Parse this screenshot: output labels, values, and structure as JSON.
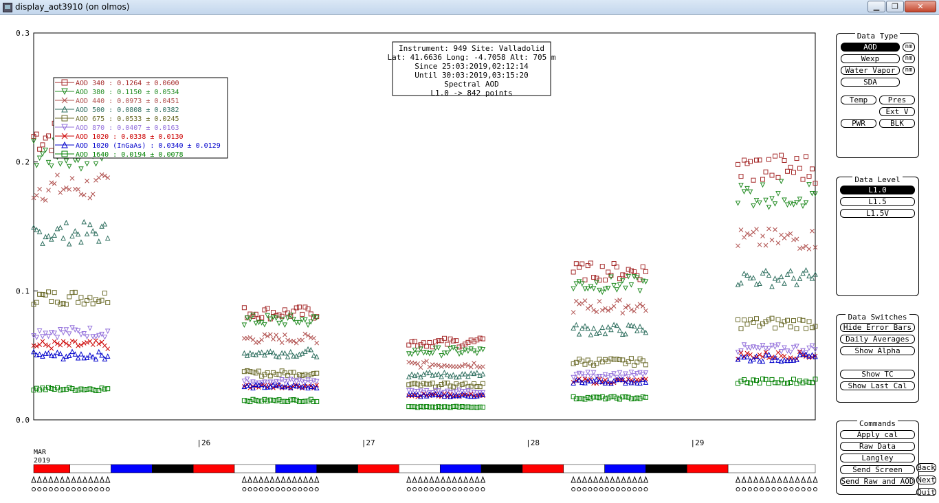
{
  "window": {
    "title": "display_aot3910 (on olmos)"
  },
  "info_box": [
    "Instrument: 949 Site: Valladolid",
    "Lat: 41.6636 Long: -4.7058 Alt: 705 m",
    "Since 25:03:2019,02:12:14",
    "Until 30:03:2019,03:15:20",
    "Spectral AOD",
    "L1.0 -> 842 points"
  ],
  "legend": [
    {
      "name": "AOD 340",
      "stat": ": 0.1264 ± 0.0600",
      "color": "#a52a2a",
      "marker": "square"
    },
    {
      "name": "AOD 380",
      "stat": ": 0.1150 ± 0.0534",
      "color": "#228b22",
      "marker": "tri-down"
    },
    {
      "name": "AOD 440",
      "stat": ": 0.0973 ± 0.0451",
      "color": "#b0504e",
      "marker": "x"
    },
    {
      "name": "AOD 500",
      "stat": ": 0.0808 ± 0.0382",
      "color": "#2f6f5f",
      "marker": "tri-up"
    },
    {
      "name": "AOD 675",
      "stat": ": 0.0533 ± 0.0245",
      "color": "#6b6b2a",
      "marker": "square"
    },
    {
      "name": "AOD 870",
      "stat": ": 0.0407 ± 0.0163",
      "color": "#9370db",
      "marker": "tri-down"
    },
    {
      "name": "AOD 1020",
      "stat": " : 0.0338 ± 0.0130",
      "color": "#cc0000",
      "marker": "x"
    },
    {
      "name": "AOD 1020 (InGaAs)",
      "stat": " : 0.0340 ± 0.0129",
      "color": "#0000cc",
      "marker": "tri-up"
    },
    {
      "name": "AOD 1640",
      "stat": " : 0.0194 ± 0.0078",
      "color": "#008000",
      "marker": "square"
    }
  ],
  "chart_data": {
    "type": "scatter",
    "title": "",
    "ylim": [
      0,
      0.3
    ],
    "y_ticks": [
      "0.0",
      "0.1",
      "0.2",
      "0.3"
    ],
    "x_ticks": [
      "|26",
      "|27",
      "|28",
      "|29"
    ],
    "x_month_label": "MAR",
    "x_year_label": "2019",
    "x_range_days": [
      25.0,
      29.75
    ],
    "segments": [
      {
        "day_start": 25.0,
        "day_end": 25.45,
        "values": {
          "AOD 340": 0.22,
          "AOD 380": 0.205,
          "AOD 440": 0.18,
          "AOD 500": 0.145,
          "AOD 675": 0.095,
          "AOD 870": 0.068,
          "AOD 1020": 0.058,
          "AOD 1020 (InGaAs)": 0.05,
          "AOD 1640": 0.024
        }
      },
      {
        "day_start": 26.28,
        "day_end": 26.72,
        "values": {
          "AOD 340": 0.083,
          "AOD 380": 0.077,
          "AOD 440": 0.063,
          "AOD 500": 0.052,
          "AOD 675": 0.036,
          "AOD 870": 0.03,
          "AOD 1020": 0.026,
          "AOD 1020 (InGaAs)": 0.026,
          "AOD 1640": 0.015
        }
      },
      {
        "day_start": 27.28,
        "day_end": 27.73,
        "values": {
          "AOD 340": 0.06,
          "AOD 380": 0.053,
          "AOD 440": 0.043,
          "AOD 500": 0.035,
          "AOD 675": 0.027,
          "AOD 870": 0.022,
          "AOD 1020": 0.019,
          "AOD 1020 (InGaAs)": 0.019,
          "AOD 1640": 0.01
        }
      },
      {
        "day_start": 28.28,
        "day_end": 28.72,
        "values": {
          "AOD 340": 0.115,
          "AOD 380": 0.105,
          "AOD 440": 0.088,
          "AOD 500": 0.07,
          "AOD 675": 0.045,
          "AOD 870": 0.035,
          "AOD 1020": 0.03,
          "AOD 1020 (InGaAs)": 0.03,
          "AOD 1640": 0.017
        }
      },
      {
        "day_start": 29.28,
        "day_end": 29.75,
        "values": {
          "AOD 340": 0.195,
          "AOD 380": 0.175,
          "AOD 440": 0.14,
          "AOD 500": 0.11,
          "AOD 675": 0.075,
          "AOD 870": 0.055,
          "AOD 1020": 0.05,
          "AOD 1020 (InGaAs)": 0.048,
          "AOD 1640": 0.03
        }
      }
    ],
    "time_bar": [
      {
        "day_start": 25.0,
        "day_end": 25.22,
        "color": "#ff0000"
      },
      {
        "day_start": 25.22,
        "day_end": 25.47,
        "color": "#ffffff"
      },
      {
        "day_start": 25.47,
        "day_end": 25.72,
        "color": "#0000ff"
      },
      {
        "day_start": 25.72,
        "day_end": 25.97,
        "color": "#000000"
      },
      {
        "day_start": 25.97,
        "day_end": 26.22,
        "color": "#ff0000"
      },
      {
        "day_start": 26.22,
        "day_end": 26.47,
        "color": "#ffffff"
      },
      {
        "day_start": 26.47,
        "day_end": 26.72,
        "color": "#0000ff"
      },
      {
        "day_start": 26.72,
        "day_end": 26.97,
        "color": "#000000"
      },
      {
        "day_start": 26.97,
        "day_end": 27.22,
        "color": "#ff0000"
      },
      {
        "day_start": 27.22,
        "day_end": 27.47,
        "color": "#ffffff"
      },
      {
        "day_start": 27.47,
        "day_end": 27.72,
        "color": "#0000ff"
      },
      {
        "day_start": 27.72,
        "day_end": 27.97,
        "color": "#000000"
      },
      {
        "day_start": 27.97,
        "day_end": 28.22,
        "color": "#ff0000"
      },
      {
        "day_start": 28.22,
        "day_end": 28.47,
        "color": "#ffffff"
      },
      {
        "day_start": 28.47,
        "day_end": 28.72,
        "color": "#0000ff"
      },
      {
        "day_start": 28.72,
        "day_end": 28.97,
        "color": "#000000"
      },
      {
        "day_start": 28.97,
        "day_end": 29.22,
        "color": "#ff0000"
      },
      {
        "day_start": 29.22,
        "day_end": 29.75,
        "color": "#ffffff"
      }
    ],
    "grid": false,
    "legend_placement": "top-left"
  },
  "panels": {
    "data_type": {
      "title": "Data Type",
      "aod": "AOD",
      "wexp": "Wexp",
      "water_vapor": "Water Vapor",
      "sda": "SDA",
      "nm": "nm",
      "temp": "Temp",
      "pres": "Pres",
      "ext_v": "Ext V",
      "pwr": "PWR",
      "blk": "BLK"
    },
    "data_level": {
      "title": "Data Level",
      "l10": "L1.0",
      "l15": "L1.5",
      "l15v": "L1.5V"
    },
    "data_switches": {
      "title": "Data Switches",
      "hide_error_bars": "Hide Error Bars",
      "daily_averages": "Daily Averages",
      "show_alpha": "Show Alpha",
      "show_tc": "Show TC",
      "show_last_cal": "Show Last Cal"
    },
    "commands": {
      "title": "Commands",
      "apply_cal": "Apply cal",
      "raw_data": "Raw Data",
      "langley": "Langley",
      "send_screen": "Send Screen",
      "send_raw_aod": "Send Raw and AOD"
    }
  },
  "nav": {
    "back": "Back",
    "next": "Next",
    "quit": "Quit"
  }
}
